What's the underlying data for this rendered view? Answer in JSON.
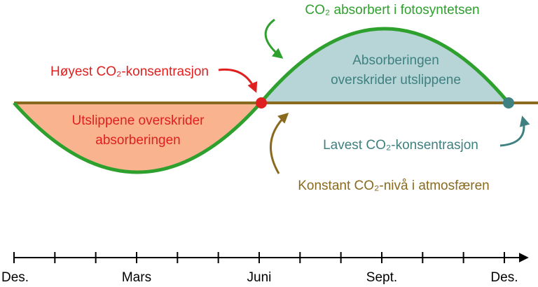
{
  "labels": {
    "absorbed": "CO₂ absorbert i fotosyntetsen",
    "highest": "Høyest CO₂-konsentrasjon",
    "absorption_exceeds": [
      "Absorberingen",
      "overskrider utslippene"
    ],
    "emission_exceeds": [
      "Utslippene overskrider",
      "absorberingen"
    ],
    "lowest": "Lavest CO₂-konsentrasjon",
    "constant": "Konstant CO₂-nivå i atmosfæren"
  },
  "timeline": [
    "Des.",
    "Mars",
    "Juni",
    "Sept.",
    "Des."
  ]
}
